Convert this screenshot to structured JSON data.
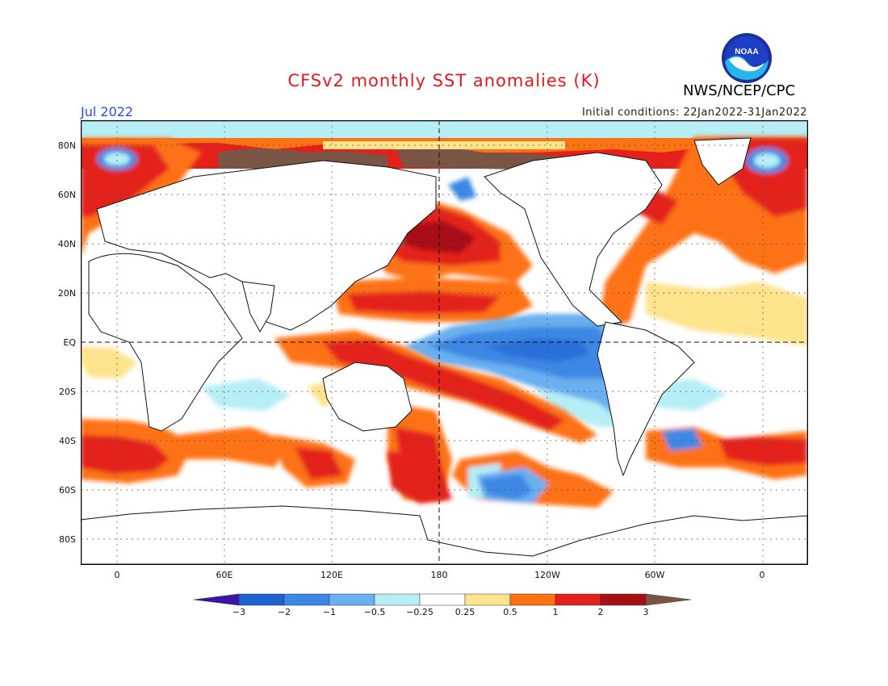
{
  "title": "CFSv2 monthly SST anomalies (K)",
  "organization": "NWS/NCEP/CPC",
  "logo_text": "NOAA",
  "valid_month": "Jul 2022",
  "initial_conditions": "Initial conditions: 22Jan2022-31Jan2022",
  "map": {
    "latitude_labels": [
      "80N",
      "60N",
      "40N",
      "20N",
      "EQ",
      "20S",
      "40S",
      "60S",
      "80S"
    ],
    "longitude_labels": [
      "0",
      "60E",
      "120E",
      "180",
      "120W",
      "60W",
      "0"
    ]
  },
  "colorbar": {
    "labels": [
      "−3",
      "−2",
      "−1",
      "−0.5",
      "−0.25",
      "0.25",
      "0.5",
      "1",
      "2",
      "3"
    ],
    "colors": [
      "#3a16a6",
      "#1e61d0",
      "#3d88e4",
      "#6aaff0",
      "#b6eef6",
      "#ffffff",
      "#fde38c",
      "#fd7212",
      "#e3201c",
      "#a70f12",
      "#7a5444"
    ]
  }
}
